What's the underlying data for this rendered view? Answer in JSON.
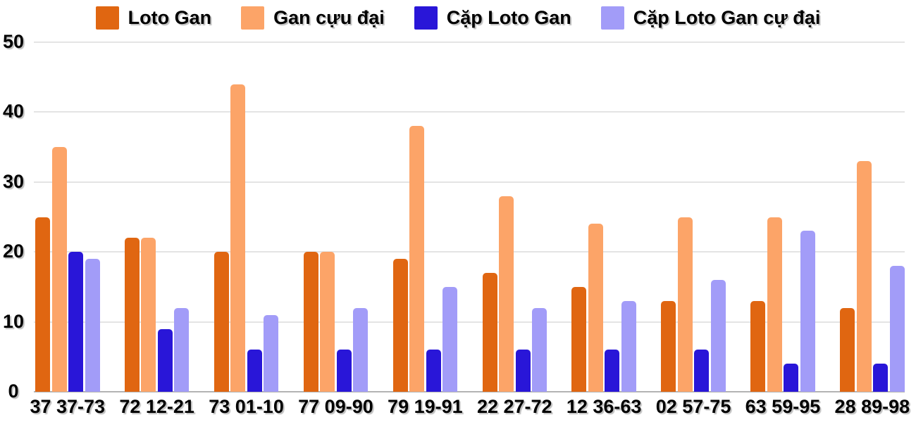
{
  "chart_data": {
    "type": "bar",
    "title": "",
    "xlabel": "",
    "ylabel": "",
    "categories": [
      "37 37-73",
      "72 12-21",
      "73 01-10",
      "77 09-90",
      "79 19-91",
      "22 27-72",
      "12 36-63",
      "02 57-75",
      "63 59-95",
      "28 89-98"
    ],
    "series": [
      {
        "name": "Loto Gan",
        "color": "#e06611",
        "values": [
          25,
          22,
          20,
          20,
          19,
          17,
          15,
          13,
          13,
          12
        ]
      },
      {
        "name": "Gan cựu đại",
        "color": "#fca468",
        "values": [
          35,
          22,
          44,
          20,
          38,
          28,
          24,
          25,
          25,
          33
        ]
      },
      {
        "name": "Cặp Loto Gan",
        "color": "#2916d8",
        "values": [
          20,
          9,
          6,
          6,
          6,
          6,
          6,
          6,
          4,
          4
        ]
      },
      {
        "name": "Cặp Loto Gan cự đại",
        "color": "#a29cf8",
        "values": [
          19,
          12,
          11,
          12,
          15,
          12,
          13,
          16,
          23,
          18
        ]
      }
    ],
    "ylim": [
      0,
      50
    ],
    "yticks": [
      0,
      10,
      20,
      30,
      40,
      50
    ],
    "grid": true,
    "legend_position": "top"
  },
  "colors": {
    "background": "#ffffff",
    "gridline": "#e4e4e4",
    "baseline": "#b3b3b3",
    "text": "#000000"
  }
}
